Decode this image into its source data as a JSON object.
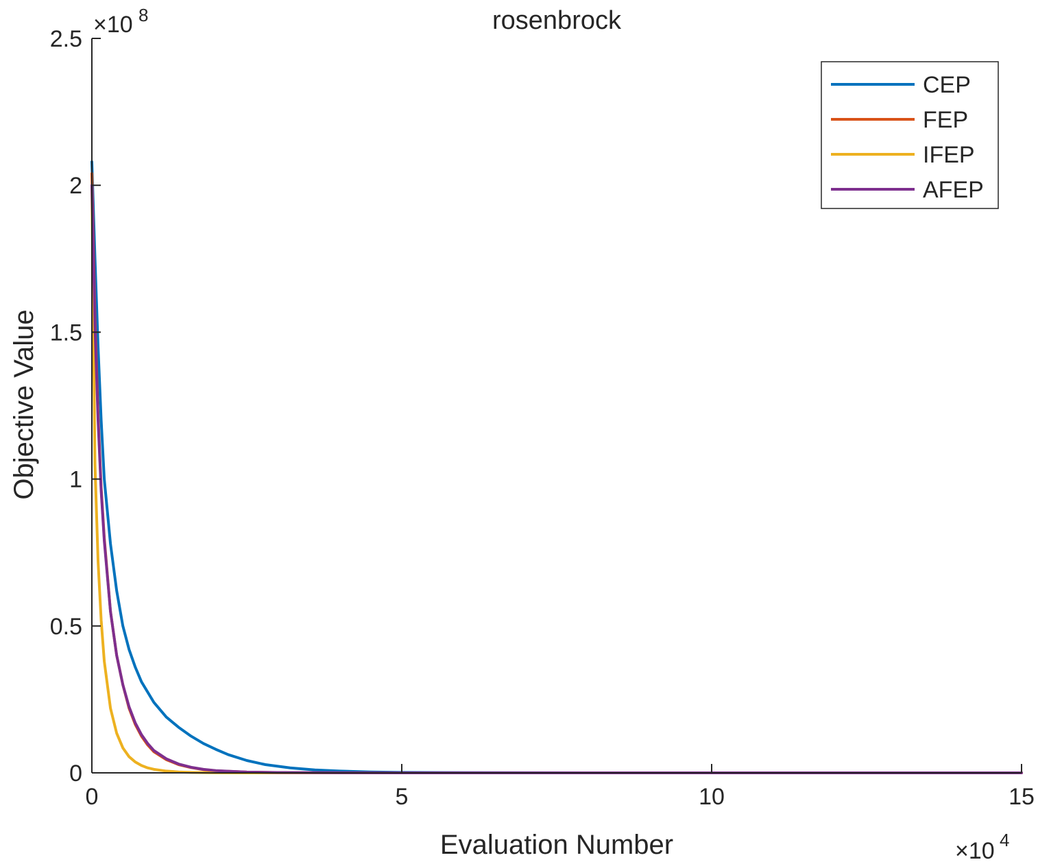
{
  "chart_data": {
    "type": "line",
    "title": "rosenbrock",
    "xlabel": "Evaluation Number",
    "ylabel": "Objective Value",
    "x_multiplier": "×10",
    "x_exponent": "4",
    "y_multiplier": "×10",
    "y_exponent": "8",
    "xlim": [
      0,
      150000
    ],
    "ylim": [
      0,
      250000000
    ],
    "xticks": [
      0,
      50000,
      100000,
      150000
    ],
    "xtick_labels": [
      "0",
      "5",
      "10",
      "15"
    ],
    "yticks": [
      0,
      50000000,
      100000000,
      150000000,
      200000000,
      250000000
    ],
    "ytick_labels": [
      "0",
      "0.5",
      "1",
      "1.5",
      "2",
      "2.5"
    ],
    "grid": false,
    "legend_position": "top-right",
    "series": [
      {
        "name": "CEP",
        "color": "#0072BD",
        "x": [
          0,
          500,
          1000,
          1500,
          2000,
          3000,
          4000,
          5000,
          6000,
          7000,
          8000,
          10000,
          12000,
          14000,
          16000,
          18000,
          20000,
          22000,
          25000,
          28000,
          32000,
          36000,
          40000,
          45000,
          50000,
          60000,
          80000,
          100000,
          150000
        ],
        "values": [
          208000000,
          175000000,
          145000000,
          120000000,
          100000000,
          78000000,
          62000000,
          50000000,
          42000000,
          36000000,
          31000000,
          24000000,
          19000000,
          15500000,
          12500000,
          10000000,
          8000000,
          6200000,
          4200000,
          2800000,
          1700000,
          1000000,
          600000,
          300000,
          150000,
          50000,
          10000,
          2000,
          0
        ]
      },
      {
        "name": "FEP",
        "color": "#D95319",
        "x": [
          0,
          500,
          1000,
          1500,
          2000,
          3000,
          4000,
          5000,
          6000,
          7000,
          8000,
          9000,
          10000,
          12000,
          14000,
          16000,
          18000,
          20000,
          25000,
          30000,
          40000,
          50000,
          150000
        ],
        "values": [
          204000000,
          155000000,
          122000000,
          97000000,
          80000000,
          55000000,
          40000000,
          30000000,
          22000000,
          16500000,
          12500000,
          9500000,
          7200000,
          4500000,
          2800000,
          1800000,
          1100000,
          700000,
          250000,
          100000,
          20000,
          5000,
          0
        ]
      },
      {
        "name": "IFEP",
        "color": "#EDB120",
        "x": [
          0,
          500,
          1000,
          1500,
          2000,
          3000,
          4000,
          5000,
          6000,
          7000,
          8000,
          9000,
          10000,
          12000,
          14000,
          16000,
          18000,
          20000,
          25000,
          30000,
          150000
        ],
        "values": [
          200000000,
          105000000,
          72000000,
          52000000,
          38000000,
          22000000,
          13500000,
          8500000,
          5500000,
          3700000,
          2500000,
          1700000,
          1200000,
          600000,
          300000,
          150000,
          80000,
          40000,
          10000,
          2000,
          0
        ]
      },
      {
        "name": "AFEP",
        "color": "#7E2F8E",
        "x": [
          0,
          500,
          1000,
          1500,
          2000,
          3000,
          4000,
          5000,
          6000,
          7000,
          8000,
          9000,
          10000,
          12000,
          14000,
          16000,
          18000,
          20000,
          25000,
          30000,
          40000,
          50000,
          150000
        ],
        "values": [
          200000000,
          152000000,
          120000000,
          96000000,
          79000000,
          55000000,
          40000000,
          30000000,
          22500000,
          17000000,
          13000000,
          10000000,
          7600000,
          4800000,
          3000000,
          1900000,
          1200000,
          750000,
          270000,
          110000,
          22000,
          6000,
          0
        ]
      }
    ]
  }
}
